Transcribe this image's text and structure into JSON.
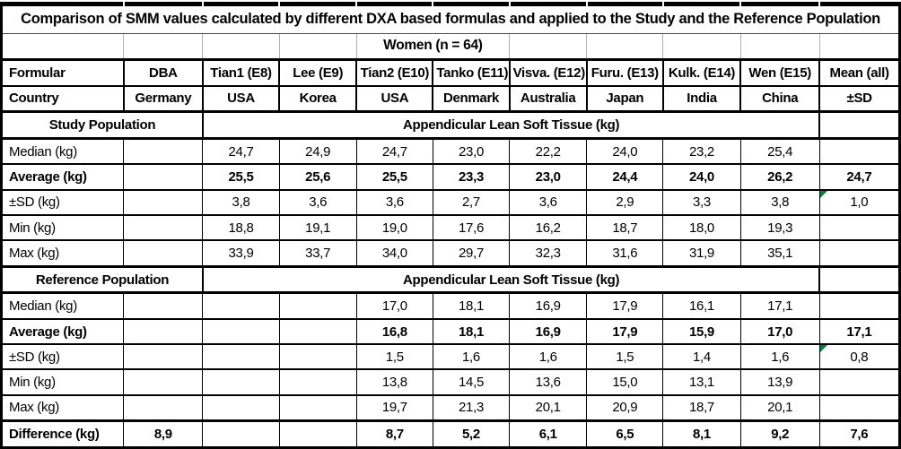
{
  "title": "Comparison of SMM values calculated by different DXA based formulas and applied to the Study and the Reference Population",
  "subtitle": "Women (n = 64)",
  "columns": {
    "formular_label": "Formular",
    "country_label": "Country",
    "formulas": [
      "DBA",
      "Tian1 (E8)",
      "Lee (E9)",
      "Tian2 (E10)",
      "Tanko (E11)",
      "Visva. (E12)",
      "Furu. (E13)",
      "Kulk. (E14)",
      "Wen (E15)",
      "Mean (all)"
    ],
    "countries": [
      "Germany",
      "USA",
      "Korea",
      "USA",
      "Denmark",
      "Australia",
      "Japan",
      "India",
      "China",
      "±SD"
    ]
  },
  "sections": [
    {
      "name": "Study Population",
      "measure": "Appendicular Lean Soft Tissue (kg)",
      "rows": [
        {
          "label": "Median (kg)",
          "bold": false,
          "flag_last": false,
          "values": [
            "",
            "24,7",
            "24,9",
            "24,7",
            "23,0",
            "22,2",
            "24,0",
            "23,2",
            "25,4",
            ""
          ]
        },
        {
          "label": "Average (kg)",
          "bold": true,
          "flag_last": false,
          "values": [
            "",
            "25,5",
            "25,6",
            "25,5",
            "23,3",
            "23,0",
            "24,4",
            "24,0",
            "26,2",
            "24,7"
          ]
        },
        {
          "label": "±SD (kg)",
          "bold": false,
          "flag_last": true,
          "values": [
            "",
            "3,8",
            "3,6",
            "3,6",
            "2,7",
            "3,6",
            "2,9",
            "3,3",
            "3,8",
            "1,0"
          ]
        },
        {
          "label": "Min (kg)",
          "bold": false,
          "flag_last": false,
          "values": [
            "",
            "18,8",
            "19,1",
            "19,0",
            "17,6",
            "16,2",
            "18,7",
            "18,0",
            "19,3",
            ""
          ]
        },
        {
          "label": "Max (kg)",
          "bold": false,
          "flag_last": false,
          "values": [
            "",
            "33,9",
            "33,7",
            "34,0",
            "29,7",
            "32,3",
            "31,6",
            "31,9",
            "35,1",
            ""
          ]
        }
      ]
    },
    {
      "name": "Reference Population",
      "measure": "Appendicular Lean Soft Tissue (kg)",
      "rows": [
        {
          "label": "Median (kg)",
          "bold": false,
          "flag_last": false,
          "values": [
            "",
            "",
            "",
            "17,0",
            "18,1",
            "16,9",
            "17,9",
            "16,1",
            "17,1",
            ""
          ]
        },
        {
          "label": "Average (kg)",
          "bold": true,
          "flag_last": false,
          "values": [
            "",
            "",
            "",
            "16,8",
            "18,1",
            "16,9",
            "17,9",
            "15,9",
            "17,0",
            "17,1"
          ]
        },
        {
          "label": "±SD (kg)",
          "bold": false,
          "flag_last": true,
          "values": [
            "",
            "",
            "",
            "1,5",
            "1,6",
            "1,6",
            "1,5",
            "1,4",
            "1,6",
            "0,8"
          ]
        },
        {
          "label": "Min (kg)",
          "bold": false,
          "flag_last": false,
          "values": [
            "",
            "",
            "",
            "13,8",
            "14,5",
            "13,6",
            "15,0",
            "13,1",
            "13,9",
            ""
          ]
        },
        {
          "label": "Max (kg)",
          "bold": false,
          "flag_last": false,
          "values": [
            "",
            "",
            "",
            "19,7",
            "21,3",
            "20,1",
            "20,9",
            "18,7",
            "20,1",
            ""
          ]
        }
      ]
    }
  ],
  "difference_row": {
    "label": "Difference (kg)",
    "values": [
      "8,9",
      "",
      "",
      "8,7",
      "5,2",
      "6,1",
      "6,5",
      "8,1",
      "9,2",
      "7,6"
    ]
  },
  "icons": {
    "error_flag": "error-flag-icon"
  },
  "colors": {
    "border": "#000000",
    "light_grid": "#b0b0b0",
    "flag_green": "#107C41",
    "text": "#000000",
    "background": "#ffffff"
  }
}
